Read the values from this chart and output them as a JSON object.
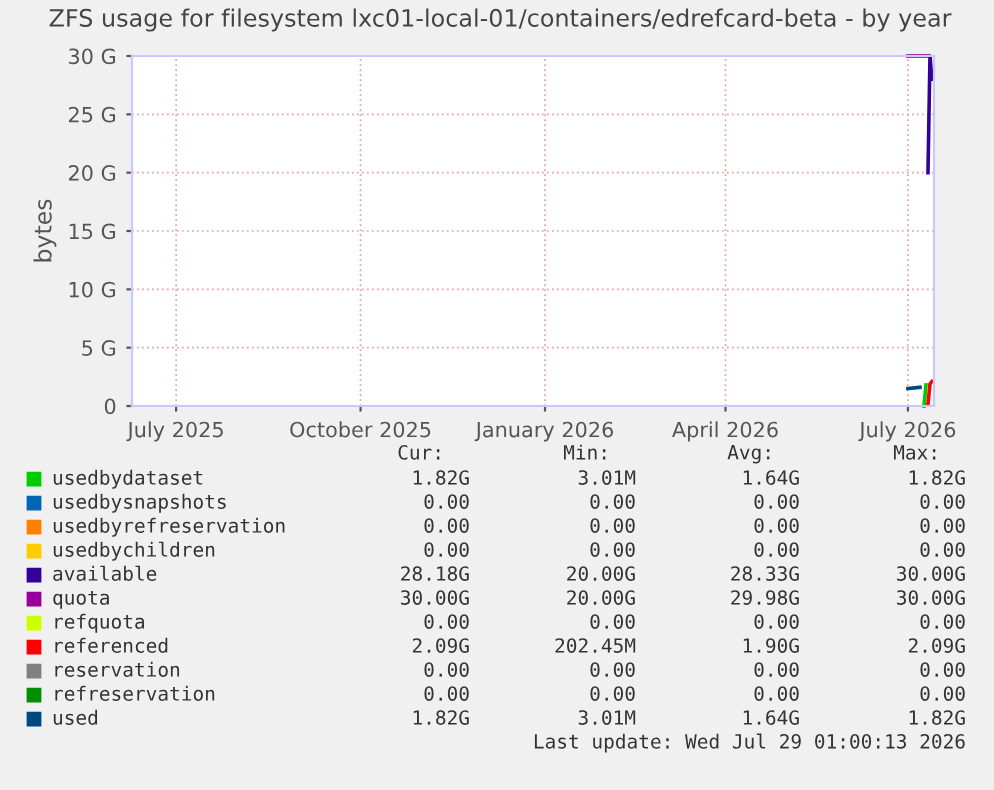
{
  "chart_data": {
    "type": "line",
    "title": "ZFS usage for filesystem lxc01-local-01/containers/edrefcard-beta - by year",
    "ylabel": "bytes",
    "x": [
      "2026-07-26",
      "2026-07-27",
      "2026-07-28"
    ],
    "series": [
      {
        "name": "usedbydataset",
        "color": "#00cc00",
        "x": [
          "2026-07-24",
          "2026-07-25"
        ],
        "values": [
          0.0,
          1.8
        ]
      },
      {
        "name": "usedbysnapshots",
        "color": "#0066b3",
        "values": [
          null,
          null,
          null
        ]
      },
      {
        "name": "usedbyrefreservation",
        "color": "#ff8000",
        "values": [
          null,
          null,
          null
        ]
      },
      {
        "name": "usedbychildren",
        "color": "#ffcc00",
        "values": [
          null,
          null,
          null
        ]
      },
      {
        "name": "available",
        "color": "#330099",
        "values": [
          20,
          30,
          28
        ]
      },
      {
        "name": "quota",
        "color": "#990099",
        "x": [
          "2026-07-16",
          "2026-07-26"
        ],
        "values": [
          30,
          30
        ]
      },
      {
        "name": "refquota",
        "color": "#ccff00",
        "values": [
          null,
          null,
          null
        ]
      },
      {
        "name": "referenced",
        "color": "#ff0000",
        "values": [
          0.2,
          1.9,
          2.1
        ]
      },
      {
        "name": "reservation",
        "color": "#808080",
        "values": [
          null,
          null,
          null
        ]
      },
      {
        "name": "refreservation",
        "color": "#008f00",
        "values": [
          null,
          null,
          null
        ]
      },
      {
        "name": "used",
        "color": "#00487d",
        "x": [
          "2026-07-16",
          "2026-07-22"
        ],
        "values": [
          1.5,
          1.6
        ]
      }
    ],
    "xlim": [
      "2025-06-24",
      "2026-07-29"
    ],
    "xticks": [
      {
        "value": "2025-07-16",
        "label": "July 2025"
      },
      {
        "value": "2025-10-16",
        "label": "October 2025"
      },
      {
        "value": "2026-01-16",
        "label": "January 2026"
      },
      {
        "value": "2026-04-16",
        "label": "April 2026"
      },
      {
        "value": "2026-07-16",
        "label": "July 2026"
      }
    ],
    "ylim": [
      0,
      30
    ],
    "yticks": [
      0,
      {
        "value": 5,
        "label": "5 G"
      },
      {
        "value": 10,
        "label": "10 G"
      },
      {
        "value": 15,
        "label": "15 G"
      },
      {
        "value": 20,
        "label": "20 G"
      },
      {
        "value": 25,
        "label": "25 G"
      },
      {
        "value": 30,
        "label": "30 G"
      }
    ],
    "grid": true,
    "legend": "bottom",
    "annotations": [
      "Cur: Min: Avg: Max:",
      "1.82G 3.01M 1.64G 1.82G",
      "0.00 0.00 0.00 0.00",
      "0.00 0.00 0.00 0.00",
      "0.00 0.00 0.00 0.00",
      "28.18G 20.00G 28.33G 30.00G",
      "30.00G 20.00G 29.98G 30.00G",
      "0.00 0.00 0.00 0.00",
      "2.09G 202.45M 1.90G 2.09G",
      "0.00 0.00 0.00 0.00",
      "0.00 0.00 0.00 0.00",
      "1.82G 3.01M 1.64G 1.82G",
      "Last update: Wed Jul 29 01:00:13 2026"
    ]
  }
}
